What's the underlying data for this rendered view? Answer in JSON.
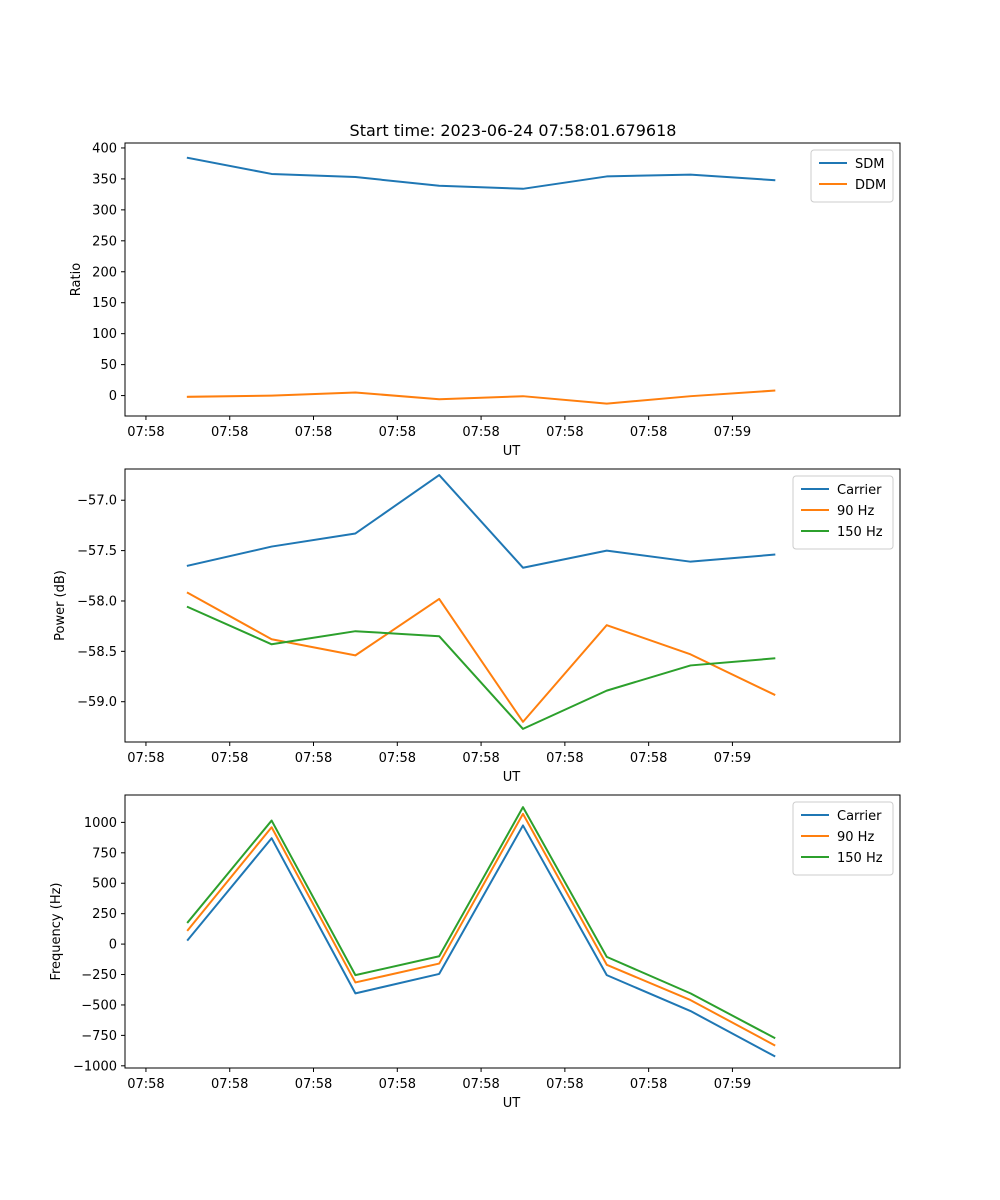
{
  "figure": {
    "title": "Start time: 2023-06-24 07:58:01.679618"
  },
  "colors": {
    "series1": "#1f77b4",
    "series2": "#ff7f0e",
    "series3": "#2ca02c"
  },
  "chart_data": [
    {
      "type": "line",
      "title": "Start time: 2023-06-24 07:58:01.679618",
      "xlabel": "UT",
      "ylabel": "Ratio",
      "x_tick_labels": [
        "07:58",
        "07:58",
        "07:58",
        "07:58",
        "07:58",
        "07:58",
        "07:58",
        "07:59"
      ],
      "x_points": 8,
      "xlim": [
        -0.75,
        8.5
      ],
      "ylim": [
        -33,
        408
      ],
      "y_ticks": [
        0,
        50,
        100,
        150,
        200,
        250,
        300,
        350,
        400
      ],
      "legend": "top-right",
      "grid": false,
      "series": [
        {
          "name": "SDM",
          "color": "#1f77b4",
          "values": [
            384,
            358,
            353,
            339,
            334,
            354,
            357,
            348
          ]
        },
        {
          "name": "DDM",
          "color": "#ff7f0e",
          "values": [
            -2,
            0,
            5,
            -6,
            -1,
            -13,
            -1,
            8
          ]
        }
      ]
    },
    {
      "type": "line",
      "xlabel": "UT",
      "ylabel": "Power (dB)",
      "x_tick_labels": [
        "07:58",
        "07:58",
        "07:58",
        "07:58",
        "07:58",
        "07:58",
        "07:58",
        "07:59"
      ],
      "x_points": 8,
      "xlim": [
        -0.75,
        8.5
      ],
      "ylim": [
        -59.4,
        -56.69
      ],
      "y_ticks": [
        -59.0,
        -58.5,
        -58.0,
        -57.5,
        -57.0
      ],
      "y_tick_labels": [
        "−59.0",
        "−58.5",
        "−58.0",
        "−57.5",
        "−57.0"
      ],
      "legend": "top-right",
      "grid": false,
      "series": [
        {
          "name": "Carrier",
          "color": "#1f77b4",
          "values": [
            -57.65,
            -57.46,
            -57.33,
            -56.75,
            -57.67,
            -57.5,
            -57.61,
            -57.54
          ]
        },
        {
          "name": "90 Hz",
          "color": "#ff7f0e",
          "values": [
            -57.92,
            -58.38,
            -58.54,
            -57.98,
            -59.2,
            -58.24,
            -58.53,
            -58.93
          ]
        },
        {
          "name": "150 Hz",
          "color": "#2ca02c",
          "values": [
            -58.06,
            -58.43,
            -58.3,
            -58.35,
            -59.27,
            -58.89,
            -58.64,
            -58.57
          ]
        }
      ]
    },
    {
      "type": "line",
      "xlabel": "UT",
      "ylabel": "Frequency (Hz)",
      "x_tick_labels": [
        "07:58",
        "07:58",
        "07:58",
        "07:58",
        "07:58",
        "07:58",
        "07:58",
        "07:59"
      ],
      "x_points": 8,
      "xlim": [
        -0.75,
        8.5
      ],
      "ylim": [
        -1018,
        1225
      ],
      "y_ticks": [
        -1000,
        -750,
        -500,
        -250,
        0,
        250,
        500,
        750,
        1000
      ],
      "y_tick_labels": [
        "−1000",
        "−750",
        "−500",
        "−250",
        "0",
        "250",
        "500",
        "750",
        "1000"
      ],
      "legend": "top-right",
      "grid": false,
      "series": [
        {
          "name": "Carrier",
          "color": "#1f77b4",
          "values": [
            35,
            870,
            -405,
            -245,
            975,
            -255,
            -550,
            -920
          ]
        },
        {
          "name": "90 Hz",
          "color": "#ff7f0e",
          "values": [
            115,
            960,
            -315,
            -160,
            1070,
            -170,
            -460,
            -830
          ]
        },
        {
          "name": "150 Hz",
          "color": "#2ca02c",
          "values": [
            180,
            1015,
            -255,
            -100,
            1125,
            -105,
            -405,
            -770
          ]
        }
      ]
    }
  ]
}
